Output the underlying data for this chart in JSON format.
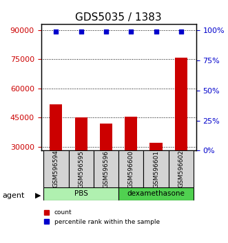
{
  "title": "GDS5035 / 1383",
  "samples": [
    "GSM596594",
    "GSM596595",
    "GSM596596",
    "GSM596600",
    "GSM596601",
    "GSM596602"
  ],
  "counts": [
    52000,
    45000,
    42000,
    45500,
    32000,
    76000
  ],
  "percentiles": [
    99,
    99,
    99,
    99,
    99,
    99
  ],
  "groups": [
    {
      "name": "PBS",
      "samples": [
        0,
        1,
        2
      ],
      "color": "#b0f0b0"
    },
    {
      "name": "dexamethasone",
      "samples": [
        3,
        4,
        5
      ],
      "color": "#50d050"
    }
  ],
  "bar_color": "#cc0000",
  "dot_color": "#0000cc",
  "left_yticks": [
    30000,
    45000,
    60000,
    75000,
    90000
  ],
  "right_yticks": [
    0,
    25,
    50,
    75,
    100
  ],
  "ylim_left": [
    28000,
    93000
  ],
  "ylim_right": [
    0,
    105
  ],
  "background_color": "#ffffff",
  "plot_bg": "#ffffff",
  "grid_color": "#000000",
  "agent_label": "agent",
  "legend_count": "count",
  "legend_pct": "percentile rank within the sample",
  "title_fontsize": 11,
  "tick_fontsize": 8,
  "label_fontsize": 8
}
